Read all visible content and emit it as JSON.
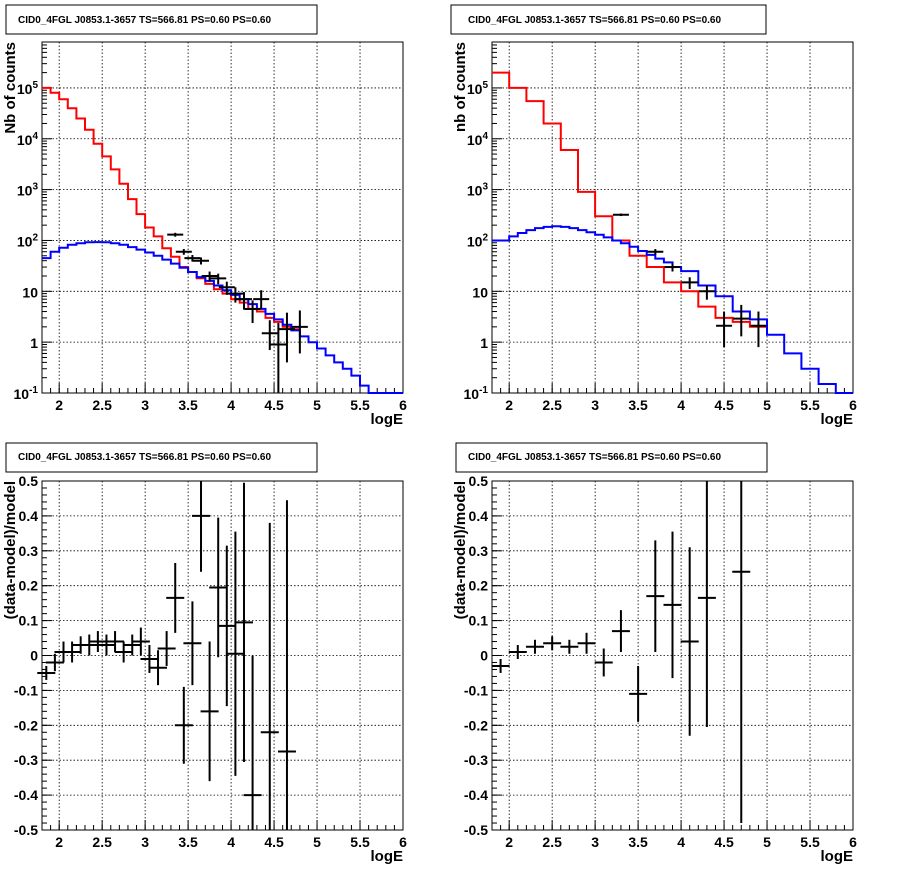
{
  "chart_data": [
    {
      "type": "line",
      "title": "CID0_4FGL J0853.1-3657 TS=566.81 PS=0.60 PS=0.60",
      "xlabel": "logE",
      "ylabel": "Nb of counts",
      "log_y": true,
      "xlim": [
        1.8,
        6.0
      ],
      "ylim": [
        0.1,
        800000
      ],
      "grid": true,
      "x_ticks": [
        "2",
        "2.5",
        "3",
        "3.5",
        "4",
        "4.5",
        "5",
        "5.5",
        "6"
      ],
      "y_ticks": [
        "10^-1",
        "1",
        "10",
        "10^2",
        "10^3",
        "10^4",
        "10^5"
      ],
      "series": [
        {
          "color": "#ff0000",
          "bin_edges": [
            1.8,
            1.9,
            2.0,
            2.1,
            2.2,
            2.3,
            2.4,
            2.5,
            2.6,
            2.7,
            2.8,
            2.9,
            3.0,
            3.1,
            3.2,
            3.3,
            3.4,
            3.5,
            3.6,
            3.7,
            3.8,
            3.9,
            4.0,
            4.1,
            4.2,
            4.3,
            4.4,
            4.5,
            4.6,
            4.7,
            4.8
          ],
          "values": [
            100000,
            80000,
            60000,
            40000,
            25000,
            15000,
            8000,
            4500,
            2500,
            1300,
            650,
            330,
            180,
            120,
            70,
            48,
            30,
            24,
            18,
            14,
            11,
            9,
            7,
            6,
            4.5,
            4,
            3,
            2.5,
            2,
            1.8
          ]
        },
        {
          "color": "#0000ff",
          "bin_edges": [
            1.8,
            1.9,
            2.0,
            2.1,
            2.2,
            2.3,
            2.4,
            2.5,
            2.6,
            2.7,
            2.8,
            2.9,
            3.0,
            3.1,
            3.2,
            3.3,
            3.4,
            3.5,
            3.6,
            3.7,
            3.8,
            3.9,
            4.0,
            4.1,
            4.2,
            4.3,
            4.4,
            4.5,
            4.6,
            4.7,
            4.8,
            4.9,
            5.0,
            5.1,
            5.2,
            5.3,
            5.4,
            5.5,
            5.6,
            5.7,
            5.8,
            5.9,
            6.0
          ],
          "values": [
            45,
            60,
            72,
            82,
            88,
            92,
            93,
            92,
            88,
            82,
            74,
            66,
            58,
            50,
            42,
            35,
            29,
            24,
            19,
            16,
            13,
            10.5,
            8.5,
            7,
            5.6,
            4.5,
            3.6,
            2.8,
            2.2,
            1.7,
            1.3,
            1.0,
            0.75,
            0.55,
            0.4,
            0.3,
            0.22,
            0.14,
            0.1,
            0.1,
            0.1,
            0.1
          ]
        },
        {
          "color": "#000000",
          "style": "points",
          "points": [
            {
              "x": 3.35,
              "y": 130
            },
            {
              "x": 3.45,
              "y": 60
            },
            {
              "x": 3.55,
              "y": 45
            },
            {
              "x": 3.65,
              "y": 40
            },
            {
              "x": 3.75,
              "y": 20
            },
            {
              "x": 3.85,
              "y": 18
            },
            {
              "x": 3.95,
              "y": 12
            },
            {
              "x": 4.05,
              "y": 9
            },
            {
              "x": 4.15,
              "y": 7
            },
            {
              "x": 4.25,
              "y": 4.5
            },
            {
              "x": 4.35,
              "y": 7,
              "el": 2.5,
              "eh": 3.5
            },
            {
              "x": 4.45,
              "y": 1.5,
              "el": 0.8,
              "eh": 1.2
            },
            {
              "x": 4.55,
              "y": 0.9,
              "el": 0.8,
              "eh": 1.5
            },
            {
              "x": 4.65,
              "y": 1.8,
              "el": 1.4,
              "eh": 2.0
            },
            {
              "x": 4.8,
              "y": 2,
              "el": 1.4,
              "eh": 2.2
            }
          ]
        }
      ]
    },
    {
      "type": "line",
      "title": "CID0_4FGL J0853.1-3657 TS=566.81 PS=0.60 PS=0.60",
      "xlabel": "logE",
      "ylabel": "nb of counts",
      "log_y": true,
      "xlim": [
        1.8,
        6.0
      ],
      "ylim": [
        0.1,
        800000
      ],
      "grid": true,
      "x_ticks": [
        "2",
        "2.5",
        "3",
        "3.5",
        "4",
        "4.5",
        "5",
        "5.5",
        "6"
      ],
      "y_ticks": [
        "10^-1",
        "1",
        "10",
        "10^2",
        "10^3",
        "10^4",
        "10^5"
      ],
      "series": [
        {
          "color": "#ff0000",
          "bin_edges": [
            1.8,
            2.0,
            2.2,
            2.4,
            2.6,
            2.8,
            3.0,
            3.2,
            3.4,
            3.6,
            3.8,
            4.0,
            4.2,
            4.4,
            4.6,
            4.8,
            5.0
          ],
          "values": [
            200000,
            100000,
            55000,
            20000,
            6000,
            900,
            300,
            100,
            50,
            30,
            15,
            10,
            5,
            3,
            2.5,
            2
          ]
        },
        {
          "color": "#0000ff",
          "bin_edges": [
            1.8,
            2.0,
            2.1,
            2.2,
            2.3,
            2.4,
            2.5,
            2.6,
            2.7,
            2.8,
            2.9,
            3.0,
            3.1,
            3.2,
            3.3,
            3.4,
            3.5,
            3.6,
            3.7,
            3.8,
            3.9,
            4.0,
            4.2,
            4.4,
            4.6,
            4.8,
            5.0,
            5.2,
            5.4,
            5.6,
            5.8,
            6.0
          ],
          "values": [
            100,
            120,
            140,
            160,
            175,
            185,
            190,
            185,
            175,
            160,
            145,
            130,
            115,
            100,
            88,
            75,
            62,
            52,
            44,
            37,
            30,
            25,
            13,
            8,
            4,
            2.8,
            1.4,
            0.6,
            0.3,
            0.15,
            0.1
          ]
        },
        {
          "color": "#000000",
          "style": "points",
          "points": [
            {
              "x": 3.3,
              "y": 320
            },
            {
              "x": 3.7,
              "y": 60
            },
            {
              "x": 3.9,
              "y": 30
            },
            {
              "x": 4.1,
              "y": 15
            },
            {
              "x": 4.3,
              "y": 10
            },
            {
              "x": 4.5,
              "y": 2.1,
              "el": 1.3,
              "eh": 1.9
            },
            {
              "x": 4.7,
              "y": 2.9,
              "el": 1.6,
              "eh": 2.5
            },
            {
              "x": 4.9,
              "y": 2.1,
              "el": 1.3,
              "eh": 1.9
            }
          ]
        }
      ]
    },
    {
      "type": "scatter",
      "title": "CID0_4FGL J0853.1-3657 TS=566.81 PS=0.60 PS=0.60",
      "xlabel": "logE",
      "ylabel": "(data-model)/model",
      "xlim": [
        1.8,
        6.0
      ],
      "ylim": [
        -0.5,
        0.5
      ],
      "grid": true,
      "x_ticks": [
        "2",
        "2.5",
        "3",
        "3.5",
        "4",
        "4.5",
        "5",
        "5.5",
        "6"
      ],
      "y_ticks": [
        "-0.5",
        "-0.4",
        "-0.3",
        "-0.2",
        "-0.1",
        "0",
        "0.1",
        "0.2",
        "0.3",
        "0.4",
        "0.5"
      ],
      "series": [
        {
          "color": "#000000",
          "points": [
            {
              "x": 1.85,
              "y": -0.05,
              "e": 0.02
            },
            {
              "x": 1.95,
              "y": -0.02,
              "e": 0.025
            },
            {
              "x": 2.05,
              "y": 0.01,
              "e": 0.03
            },
            {
              "x": 2.15,
              "y": 0.01,
              "e": 0.03
            },
            {
              "x": 2.25,
              "y": 0.03,
              "e": 0.025
            },
            {
              "x": 2.35,
              "y": 0.03,
              "e": 0.03
            },
            {
              "x": 2.45,
              "y": 0.04,
              "e": 0.03
            },
            {
              "x": 2.55,
              "y": 0.03,
              "e": 0.03
            },
            {
              "x": 2.65,
              "y": 0.04,
              "e": 0.03
            },
            {
              "x": 2.75,
              "y": 0.01,
              "e": 0.03
            },
            {
              "x": 2.85,
              "y": 0.03,
              "e": 0.03
            },
            {
              "x": 2.95,
              "y": 0.04,
              "e": 0.04
            },
            {
              "x": 3.05,
              "y": -0.01,
              "e": 0.04
            },
            {
              "x": 3.15,
              "y": -0.035,
              "e": 0.05
            },
            {
              "x": 3.25,
              "y": 0.02,
              "e": 0.05
            },
            {
              "x": 3.35,
              "y": 0.165,
              "e": 0.1
            },
            {
              "x": 3.45,
              "y": -0.2,
              "e": 0.11
            },
            {
              "x": 3.55,
              "y": 0.035,
              "e": 0.12
            },
            {
              "x": 3.65,
              "y": 0.4,
              "e": 0.16
            },
            {
              "x": 3.75,
              "y": -0.16,
              "e": 0.2
            },
            {
              "x": 3.85,
              "y": 0.195,
              "e": 0.2
            },
            {
              "x": 3.95,
              "y": 0.085,
              "e": 0.23
            },
            {
              "x": 4.05,
              "y": 0.005,
              "e": 0.35
            },
            {
              "x": 4.15,
              "y": 0.095,
              "e": 0.4
            },
            {
              "x": 4.25,
              "y": -0.4,
              "e": 0.4
            },
            {
              "x": 4.45,
              "y": -0.22,
              "e": 0.6
            },
            {
              "x": 4.65,
              "y": -0.275,
              "e": 0.72
            }
          ]
        }
      ]
    },
    {
      "type": "scatter",
      "title": "CID0_4FGL J0853.1-3657 TS=566.81 PS=0.60 PS=0.60",
      "xlabel": "logE",
      "ylabel": "(data-model)/model",
      "xlim": [
        1.8,
        6.0
      ],
      "ylim": [
        -0.5,
        0.5
      ],
      "grid": true,
      "x_ticks": [
        "2",
        "2.5",
        "3",
        "3.5",
        "4",
        "4.5",
        "5",
        "5.5",
        "6"
      ],
      "y_ticks": [
        "-0.5",
        "-0.4",
        "-0.3",
        "-0.2",
        "-0.1",
        "0",
        "0.1",
        "0.2",
        "0.3",
        "0.4",
        "0.5"
      ],
      "series": [
        {
          "color": "#000000",
          "points": [
            {
              "x": 1.9,
              "y": -0.03,
              "e": 0.02
            },
            {
              "x": 2.1,
              "y": 0.01,
              "e": 0.02
            },
            {
              "x": 2.3,
              "y": 0.025,
              "e": 0.02
            },
            {
              "x": 2.5,
              "y": 0.035,
              "e": 0.02
            },
            {
              "x": 2.7,
              "y": 0.025,
              "e": 0.02
            },
            {
              "x": 2.9,
              "y": 0.035,
              "e": 0.03
            },
            {
              "x": 3.1,
              "y": -0.02,
              "e": 0.04
            },
            {
              "x": 3.3,
              "y": 0.07,
              "e": 0.06
            },
            {
              "x": 3.5,
              "y": -0.11,
              "e": 0.08
            },
            {
              "x": 3.7,
              "y": 0.17,
              "e": 0.16
            },
            {
              "x": 3.9,
              "y": 0.145,
              "e": 0.21
            },
            {
              "x": 4.1,
              "y": 0.04,
              "e": 0.27
            },
            {
              "x": 4.3,
              "y": 0.165,
              "e": 0.37
            },
            {
              "x": 4.7,
              "y": 0.24,
              "e": 0.72
            }
          ]
        }
      ]
    }
  ]
}
